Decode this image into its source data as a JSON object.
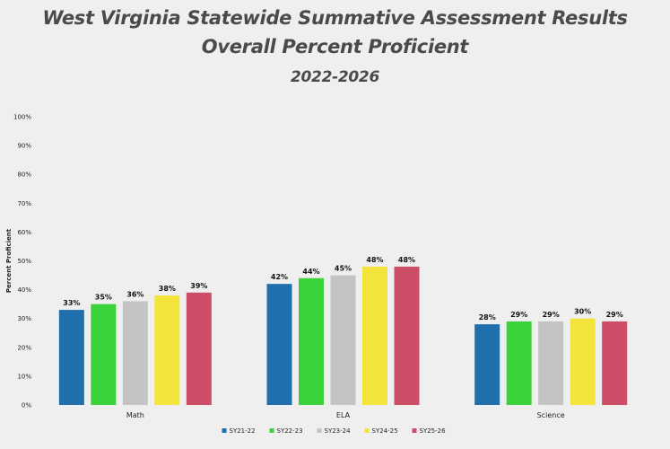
{
  "chart_data": {
    "type": "bar",
    "title_lines": [
      "West Virginia Statewide Summative Assessment Results",
      "Overall Percent Proficient",
      "2022-2026"
    ],
    "ylabel": "Percent Proficient",
    "xlabel": "",
    "ylim": [
      0,
      100
    ],
    "y_ticks": [
      "0%",
      "10%",
      "20%",
      "30%",
      "40%",
      "50%",
      "60%",
      "70%",
      "80%",
      "90%",
      "100%"
    ],
    "categories": [
      "Math",
      "ELA",
      "Science"
    ],
    "series": [
      {
        "name": "SY21-22",
        "color": "#1f6fad",
        "values": [
          33,
          42,
          28
        ],
        "labels": [
          "33%",
          "42%",
          "28%"
        ]
      },
      {
        "name": "SY22-23",
        "color": "#3cd23c",
        "values": [
          35,
          44,
          29
        ],
        "labels": [
          "35%",
          "44%",
          "29%"
        ]
      },
      {
        "name": "SY23-24",
        "color": "#c4c4c4",
        "values": [
          36,
          45,
          29
        ],
        "labels": [
          "36%",
          "45%",
          "29%"
        ]
      },
      {
        "name": "SY24-25",
        "color": "#f2e43a",
        "values": [
          38,
          48,
          30
        ],
        "labels": [
          "38%",
          "48%",
          "30%"
        ]
      },
      {
        "name": "SY25-26",
        "color": "#cc4d66",
        "values": [
          39,
          48,
          29
        ],
        "labels": [
          "39%",
          "48%",
          "29%"
        ]
      }
    ],
    "legend_position": "bottom",
    "grid": false
  }
}
